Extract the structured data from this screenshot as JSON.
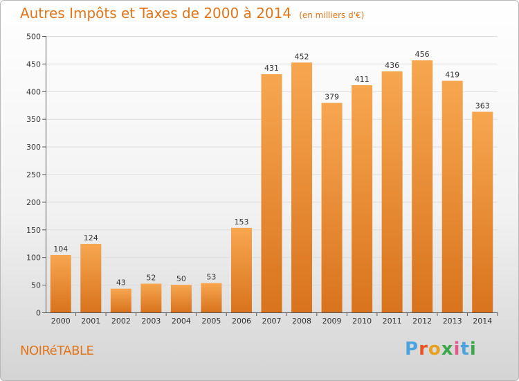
{
  "title": "Autres Impôts et Taxes de 2000 à 2014",
  "unit_label": "(en milliers d'€)",
  "commune": "NOIRéTABLE",
  "logo": {
    "text": "Proxiti",
    "colors": [
      "#4aa3df",
      "#e8531f",
      "#e8a11f",
      "#3aa84a",
      "#e05a8a",
      "#4aa3df",
      "#3aa84a"
    ]
  },
  "colors": {
    "accent": "#e0751a",
    "bar_light": "#f5a351",
    "bar_dark": "#d9731d"
  },
  "chart_data": {
    "type": "bar",
    "title": "Autres Impôts et Taxes de 2000 à 2014",
    "categories": [
      "2000",
      "2001",
      "2002",
      "2003",
      "2004",
      "2005",
      "2006",
      "2007",
      "2008",
      "2009",
      "2010",
      "2011",
      "2012",
      "2013",
      "2014"
    ],
    "values": [
      104,
      124,
      43,
      52,
      50,
      53,
      153,
      431,
      452,
      379,
      411,
      436,
      456,
      419,
      363
    ],
    "ylim": [
      0,
      500
    ],
    "yticks": [
      0,
      50,
      100,
      150,
      200,
      250,
      300,
      350,
      400,
      450,
      500
    ],
    "grid": true
  }
}
